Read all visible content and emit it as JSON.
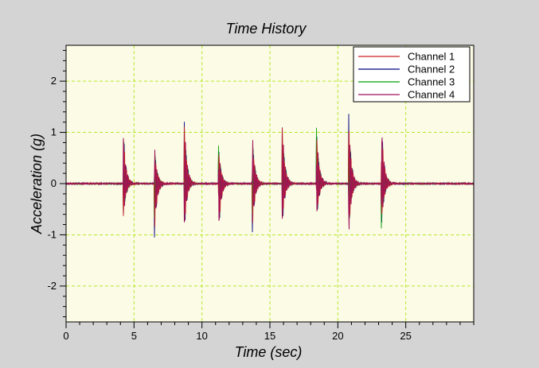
{
  "chart_data": {
    "type": "line",
    "title": "Time History",
    "xlabel": "Time (sec)",
    "ylabel": "Acceleration (g)",
    "xlim": [
      0,
      30
    ],
    "ylim": [
      -2.7,
      2.7
    ],
    "x_ticks": [
      0,
      5,
      10,
      15,
      20,
      25
    ],
    "y_ticks": [
      -2,
      -1,
      0,
      1,
      2
    ],
    "grid": true,
    "legend_position": "top-right",
    "background_color": "#fbfbe6",
    "grid_color": "#b6e82c",
    "series": [
      {
        "name": "Channel 1",
        "color": "#cc2222"
      },
      {
        "name": "Channel 2",
        "color": "#000080"
      },
      {
        "name": "Channel 3",
        "color": "#00a000"
      },
      {
        "name": "Channel 4",
        "color": "#a0105a"
      }
    ],
    "impacts": [
      {
        "t": 4.2,
        "peak": 1.17,
        "trough": -0.78
      },
      {
        "t": 6.5,
        "peak": 0.8,
        "trough": -1.05
      },
      {
        "t": 8.7,
        "peak": 1.32,
        "trough": -0.97
      },
      {
        "t": 11.2,
        "peak": 0.88,
        "trough": -1.22
      },
      {
        "t": 13.7,
        "peak": 1.05,
        "trough": -0.98
      },
      {
        "t": 15.9,
        "peak": 1.3,
        "trough": -0.88
      },
      {
        "t": 18.4,
        "peak": 1.37,
        "trough": -0.93
      },
      {
        "t": 20.8,
        "peak": 1.35,
        "trough": -1.07
      },
      {
        "t": 23.2,
        "peak": 1.37,
        "trough": -0.93
      }
    ]
  }
}
